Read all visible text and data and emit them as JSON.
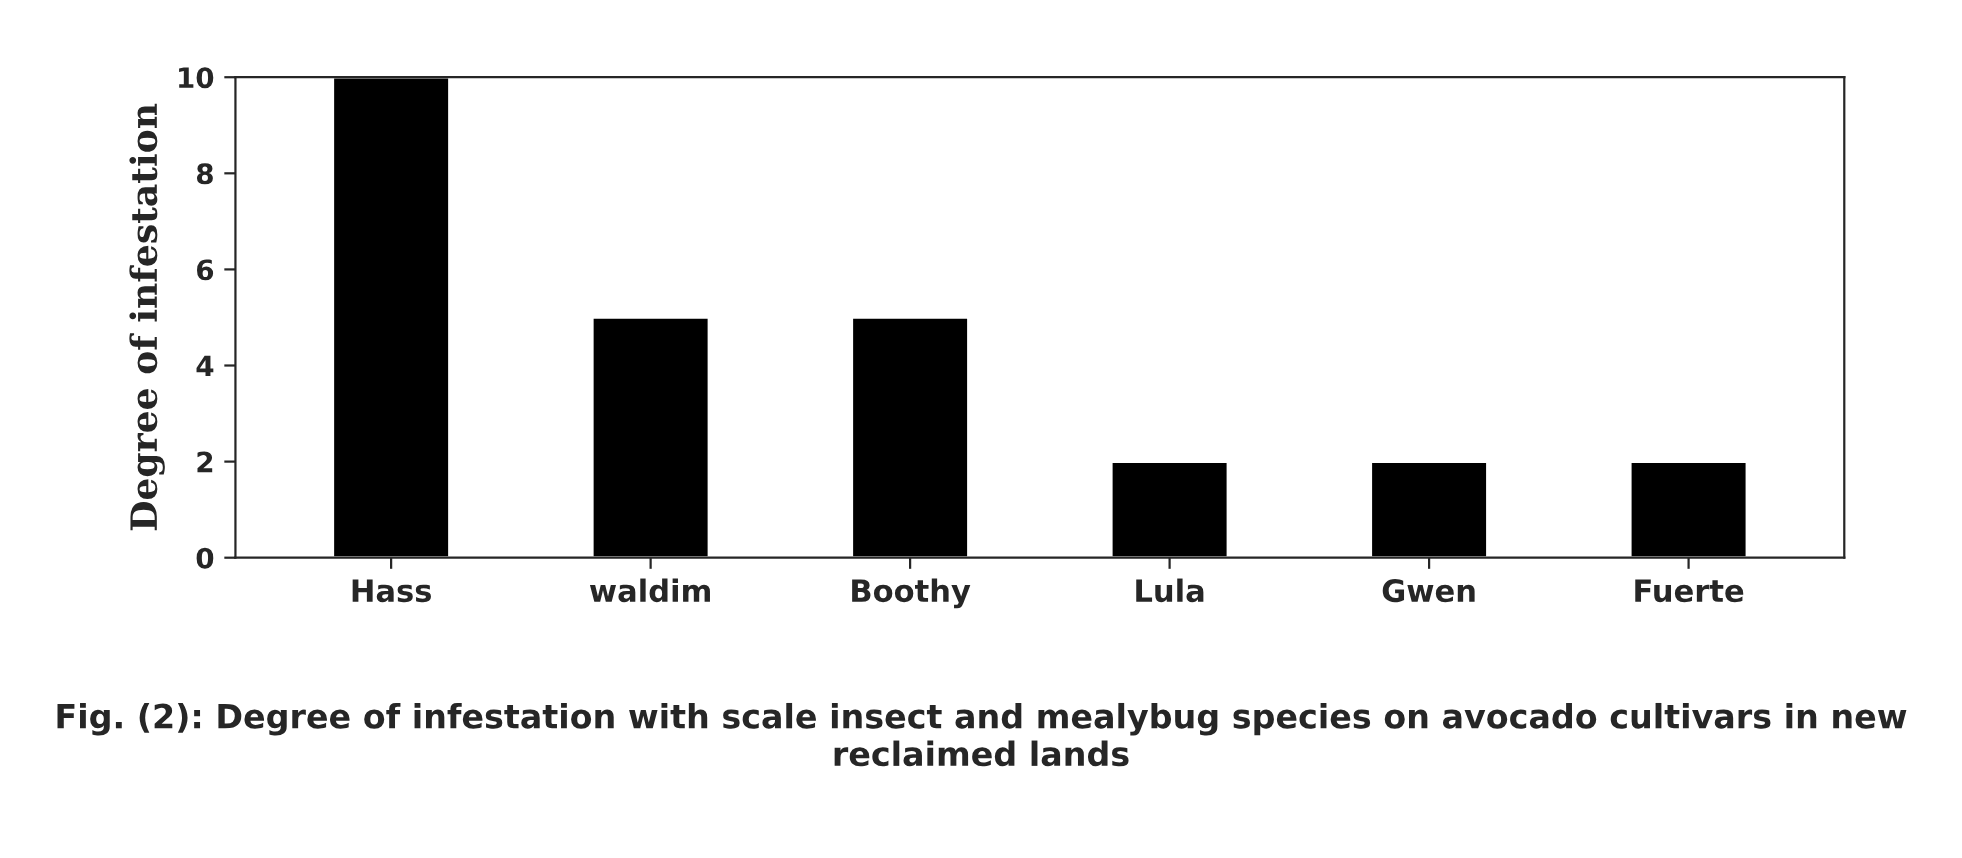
{
  "chart_data": {
    "type": "bar",
    "categories": [
      "Hass",
      "waldim",
      "Boothy",
      "Lula",
      "Gwen",
      "Fuerte"
    ],
    "values": [
      10,
      5,
      5,
      2,
      2,
      2
    ],
    "color": "#000000",
    "ylabel": "Degree of infestation",
    "ylim": [
      0,
      10
    ],
    "yticks": [
      0,
      2,
      4,
      6,
      8,
      10
    ],
    "grid": false,
    "annotations": [
      "Fig. (2): Degree of infestation with scale insect and mealybug species on avocado cultivars in new reclaimed lands"
    ]
  }
}
